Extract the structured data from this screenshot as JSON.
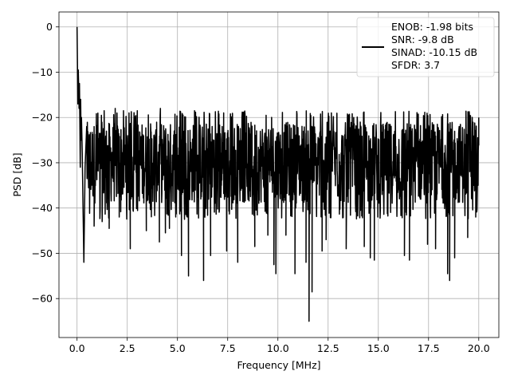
{
  "chart_data": {
    "type": "line",
    "title": "",
    "xlabel": "Frequency [MHz]",
    "ylabel": "PSD [dB]",
    "xlim": [
      -0.9,
      21.0
    ],
    "ylim": [
      -68.6,
      3.3
    ],
    "xticks": [
      0.0,
      2.5,
      5.0,
      7.5,
      10.0,
      12.5,
      15.0,
      17.5,
      20.0
    ],
    "xtick_labels": [
      "0.0",
      "2.5",
      "5.0",
      "7.5",
      "10.0",
      "12.5",
      "15.0",
      "17.5",
      "20.0"
    ],
    "yticks": [
      0,
      -10,
      -20,
      -30,
      -40,
      -50,
      -60
    ],
    "ytick_labels": [
      "0",
      "−10",
      "−20",
      "−30",
      "−40",
      "−50",
      "−60"
    ],
    "grid": true,
    "legend_position": "upper-right",
    "legend_lines": [
      "ENOB: -1.98 bits",
      "SNR: -9.8 dB",
      "SINAD: -10.15 dB",
      "SFDR: 3.7"
    ],
    "series": [
      {
        "color": "#000000",
        "noise_band": {
          "x_start": 0.0,
          "x_end": 20.0,
          "typical_min": -40,
          "typical_max": -20
        },
        "points": [
          [
            0.0,
            0.0
          ],
          [
            0.02,
            -8.0
          ],
          [
            0.04,
            -17.0
          ],
          [
            0.06,
            -9.5
          ],
          [
            0.08,
            -13.0
          ],
          [
            0.1,
            -18.0
          ],
          [
            0.12,
            -12.5
          ],
          [
            0.14,
            -21.0
          ],
          [
            0.16,
            -31.0
          ],
          [
            0.18,
            -16.0
          ],
          [
            0.2,
            -25.0
          ],
          [
            0.22,
            -20.0
          ],
          [
            0.26,
            -28.0
          ],
          [
            0.3,
            -40.5
          ],
          [
            0.34,
            -52.0
          ],
          [
            0.4,
            -31.0
          ],
          [
            0.48,
            -22.0
          ],
          [
            0.6,
            -35.0
          ],
          [
            0.85,
            -44.0
          ],
          [
            1.25,
            -43.0
          ],
          [
            1.35,
            -18.5
          ],
          [
            1.6,
            -44.5
          ],
          [
            1.9,
            -18.0
          ],
          [
            2.1,
            -42.0
          ],
          [
            2.65,
            -49.0
          ],
          [
            3.0,
            -18.5
          ],
          [
            3.45,
            -45.0
          ],
          [
            4.15,
            -18.0
          ],
          [
            4.1,
            -47.5
          ],
          [
            4.4,
            -45.5
          ],
          [
            4.6,
            -44.5
          ],
          [
            5.35,
            -42.5
          ],
          [
            5.55,
            -55.0
          ],
          [
            5.2,
            -50.5
          ],
          [
            6.3,
            -56.0
          ],
          [
            5.85,
            -18.5
          ],
          [
            6.65,
            -50.5
          ],
          [
            7.45,
            -49.5
          ],
          [
            7.3,
            -19.0
          ],
          [
            8.0,
            -52.0
          ],
          [
            8.85,
            -48.5
          ],
          [
            9.5,
            -46.0
          ],
          [
            9.8,
            -52.5
          ],
          [
            9.9,
            -54.5
          ],
          [
            10.4,
            -46.0
          ],
          [
            10.85,
            -54.5
          ],
          [
            11.4,
            -52.0
          ],
          [
            11.55,
            -65.0
          ],
          [
            11.7,
            -58.5
          ],
          [
            12.2,
            -49.5
          ],
          [
            12.4,
            -47.0
          ],
          [
            13.4,
            -49.0
          ],
          [
            14.3,
            -48.5
          ],
          [
            14.6,
            -51.0
          ],
          [
            14.8,
            -51.5
          ],
          [
            15.25,
            -22.0
          ],
          [
            16.3,
            -50.5
          ],
          [
            16.55,
            -51.5
          ],
          [
            17.45,
            -48.0
          ],
          [
            17.85,
            -49.0
          ],
          [
            18.45,
            -54.5
          ],
          [
            18.55,
            -56.0
          ],
          [
            18.8,
            -51.0
          ],
          [
            19.0,
            -23.5
          ],
          [
            19.45,
            -46.5
          ],
          [
            19.85,
            -42.0
          ],
          [
            20.0,
            -20.0
          ]
        ]
      }
    ]
  }
}
